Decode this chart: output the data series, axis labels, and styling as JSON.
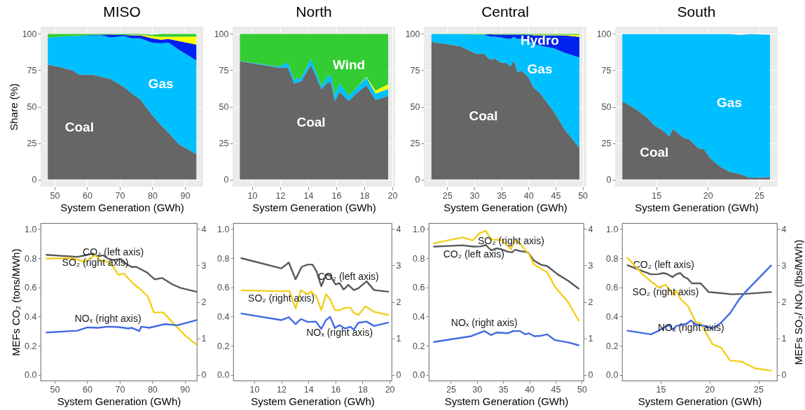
{
  "chart_data": [
    {
      "type": "area",
      "title": "MISO",
      "xlabel": "System Generation (GWh)",
      "ylabel": "Share (%)",
      "stacked": true,
      "grid": true,
      "xlim": [
        45.7,
        95.6
      ],
      "xticks": [
        50,
        60,
        70,
        80,
        90
      ],
      "ylim": [
        -5,
        105
      ],
      "yticks": [
        0,
        25,
        50,
        75,
        100
      ],
      "x": [
        47.9,
        52,
        55.4,
        57.6,
        61.7,
        64.5,
        67.2,
        71.2,
        73.6,
        76.3,
        79.9,
        82.6,
        85,
        88.2,
        93.5
      ],
      "series": [
        {
          "name": "Coal",
          "color": "#666666",
          "values": [
            79,
            77,
            75,
            72,
            72,
            70.4,
            69,
            63.7,
            59.3,
            55,
            44.4,
            37.4,
            32,
            24.2,
            17.5
          ]
        },
        {
          "name": "Gas",
          "color": "#00bfff",
          "values": [
            18.4,
            21,
            23.5,
            26.6,
            27,
            28.6,
            28.5,
            34.8,
            37.7,
            42,
            49.6,
            56.1,
            62,
            64.8,
            64.3
          ]
        },
        {
          "color": "#0022ee",
          "values": [
            0,
            0,
            0,
            0,
            0.3,
            0.5,
            2,
            0.7,
            2,
            2,
            3,
            2.5,
            2.5,
            6,
            10.8
          ]
        },
        {
          "color": "#ffff00",
          "values": [
            0,
            0,
            0,
            0,
            0,
            0,
            0,
            0,
            0.3,
            0.5,
            1.5,
            2,
            1.5,
            3,
            5.6
          ]
        },
        {
          "color": "#33cc33",
          "values": [
            2.6,
            2,
            1.5,
            1.4,
            0.7,
            0.5,
            0.5,
            0.8,
            0.7,
            0.5,
            0.9,
            2,
            2,
            2,
            1.8
          ]
        }
      ]
    },
    {
      "type": "area",
      "title": "North",
      "xlabel": "System Generation (GWh)",
      "stacked": true,
      "grid": true,
      "xlim": [
        8.6,
        20.2
      ],
      "xticks": [
        10,
        12,
        14,
        16,
        18,
        20
      ],
      "ylim": [
        -5,
        105
      ],
      "yticks": [
        0,
        25,
        50,
        75,
        100
      ],
      "x": [
        9.12,
        11.9,
        12.55,
        13.0,
        13.5,
        14.2,
        14.95,
        15.3,
        15.6,
        15.9,
        16.25,
        16.9,
        17.35,
        18.15,
        18.8,
        19.7
      ],
      "series": [
        {
          "name": "Coal",
          "color": "#666666",
          "values": [
            81.2,
            76.8,
            76.8,
            65.8,
            67.5,
            78.6,
            62,
            65.8,
            67.2,
            54,
            60.2,
            54,
            58.4,
            64.6,
            54.6,
            57.5
          ]
        },
        {
          "color": "#00bfff",
          "values": [
            0.3,
            0.7,
            3.5,
            2.7,
            2.5,
            4.4,
            2,
            4.2,
            4.8,
            4,
            5.8,
            3.5,
            3.6,
            5.4,
            4.4,
            4.8
          ]
        },
        {
          "color": "#ffff00",
          "values": [
            0,
            0,
            0,
            0,
            0,
            0,
            0,
            0,
            0,
            0,
            0,
            0,
            0,
            0.5,
            2,
            3.1
          ]
        },
        {
          "name": "Wind",
          "color": "#33cc33",
          "values": [
            18.5,
            22.5,
            19.7,
            31.5,
            30,
            17,
            36,
            30,
            28,
            42,
            34,
            42.5,
            38,
            29.5,
            39,
            34.6
          ]
        }
      ]
    },
    {
      "type": "area",
      "title": "Central",
      "xlabel": "System Generation (GWh)",
      "stacked": true,
      "grid": true,
      "xlim": [
        20.7,
        50.7
      ],
      "xticks": [
        25,
        30,
        35,
        40,
        45,
        50
      ],
      "ylim": [
        -5,
        105
      ],
      "yticks": [
        0,
        25,
        50,
        75,
        100
      ],
      "x": [
        22.1,
        27.4,
        30.5,
        31.7,
        32.9,
        33.8,
        35,
        35.7,
        36.7,
        37.3,
        38,
        38.8,
        40,
        41,
        42.1,
        44.8,
        46.7,
        49.4
      ],
      "series": [
        {
          "name": "Coal",
          "color": "#666666",
          "values": [
            94.6,
            91.6,
            86.2,
            86.6,
            82.3,
            83,
            80,
            80.3,
            77.8,
            81.8,
            73.7,
            74.6,
            70,
            63,
            59.5,
            46,
            34.3,
            21.8
          ]
        },
        {
          "name": "Gas",
          "color": "#00bfff",
          "values": [
            5.2,
            8.2,
            13.3,
            12.9,
            15.9,
            15,
            17.5,
            16.7,
            18.7,
            16.2,
            22.8,
            22.4,
            25,
            30,
            32.5,
            44,
            52.7,
            62.1
          ]
        },
        {
          "name": "Hydro",
          "color": "#0022ee",
          "values": [
            0,
            0,
            0,
            0,
            1.5,
            1.5,
            2,
            2.5,
            3,
            1.5,
            3,
            2.5,
            4.5,
            6,
            7,
            9,
            12,
            14
          ]
        },
        {
          "color": "#ffff00",
          "values": [
            0,
            0,
            0,
            0,
            0,
            0,
            0,
            0,
            0,
            0,
            0,
            0,
            0,
            0.5,
            0.5,
            0.5,
            0.5,
            1.5
          ]
        },
        {
          "color": "#33cc33",
          "values": [
            0.2,
            0.2,
            0.5,
            0.5,
            0.3,
            0.5,
            0.5,
            0.5,
            0.5,
            0.5,
            0.5,
            0.5,
            0.5,
            0.5,
            0.5,
            0.5,
            0.5,
            0.5
          ]
        }
      ]
    },
    {
      "type": "area",
      "title": "South",
      "xlabel": "System Generation (GWh)",
      "stacked": true,
      "grid": true,
      "xlim": [
        11.0,
        26.8
      ],
      "xticks": [
        15,
        20,
        25
      ],
      "ylim": [
        -5,
        105
      ],
      "yticks": [
        0,
        25,
        50,
        75,
        100
      ],
      "x": [
        11.7,
        13.1,
        14.1,
        14.8,
        15.8,
        16.26,
        16.6,
        17.2,
        17.7,
        18.2,
        19.1,
        19.6,
        20.3,
        21.2,
        22.1,
        23.1,
        24.1,
        26.05
      ],
      "series": [
        {
          "name": "Coal",
          "color": "#666666",
          "values": [
            53.7,
            48,
            42.6,
            37.3,
            32.9,
            29.4,
            34.7,
            31.2,
            28.5,
            27.7,
            21.4,
            21.1,
            14.2,
            8.9,
            5.3,
            3.9,
            1.2,
            1.6
          ]
        },
        {
          "name": "Gas",
          "color": "#00bfff",
          "values": [
            46.1,
            51.8,
            57.2,
            62.5,
            66.9,
            70.4,
            65.1,
            68.6,
            71.3,
            72.1,
            78.4,
            78.7,
            85.6,
            90.9,
            94.5,
            95.3,
            98.6,
            97.8
          ]
        }
      ]
    },
    {
      "type": "line",
      "xlabel": "System Generation (GWh)",
      "ylabel": "MEFs CO₂ (tons/MWh)",
      "xlim": [
        45.7,
        93.7
      ],
      "xticks": [
        50,
        60,
        70,
        80,
        90
      ],
      "ylim": [
        -0.04,
        1.04
      ],
      "yticks": [
        {
          "value": 0,
          "label": "0.0"
        },
        {
          "value": 0.2,
          "label": "0.2"
        },
        {
          "value": 0.4,
          "label": "0.4"
        },
        {
          "value": 0.6,
          "label": "0.6"
        },
        {
          "value": 0.8,
          "label": "0.8"
        },
        {
          "value": 1,
          "label": "1.0"
        }
      ],
      "y2lim": [
        -0.16,
        4.16
      ],
      "y2ticks": [
        0,
        1,
        2,
        3,
        4
      ],
      "series": [
        {
          "name": "CO₂ (left axis)",
          "color": "#595959",
          "x": [
            47.5,
            57,
            59.3,
            61.7,
            63.3,
            64.9,
            66.4,
            68,
            70.4,
            72,
            73.6,
            75.1,
            78.3,
            80.7,
            83,
            86.2,
            88.6,
            93.5
          ],
          "values": [
            0.823,
            0.809,
            0.819,
            0.832,
            0.813,
            0.82,
            0.797,
            0.788,
            0.793,
            0.761,
            0.74,
            0.74,
            0.703,
            0.655,
            0.664,
            0.62,
            0.597,
            0.57
          ]
        },
        {
          "name": "SO₂ (right axis)",
          "color": "#f2cf1d",
          "axis": "y2",
          "x": [
            47.5,
            55.4,
            59.3,
            62.5,
            64.5,
            66.4,
            68,
            69.6,
            71.2,
            74.3,
            76.3,
            78.7,
            80.5,
            83.4,
            87,
            90.2,
            93.5
          ],
          "values": [
            3.19,
            3.2,
            3.1,
            3.28,
            3.12,
            3.1,
            2.96,
            2.74,
            2.78,
            2.49,
            2.35,
            2.14,
            1.71,
            1.71,
            1.36,
            1.07,
            0.83
          ]
        },
        {
          "name": "NOₓ (right axis)",
          "color": "#4169e1",
          "axis": "y2",
          "x": [
            47.5,
            57,
            60.1,
            63.3,
            66.4,
            69.6,
            72.8,
            73.6,
            76,
            76.6,
            79.1,
            83.8,
            87.8,
            93.5
          ],
          "values": [
            1.16,
            1.21,
            1.3,
            1.29,
            1.32,
            1.31,
            1.27,
            1.29,
            1.2,
            1.32,
            1.29,
            1.39,
            1.36,
            1.5
          ]
        }
      ]
    },
    {
      "type": "line",
      "xlabel": "System Generation (GWh)",
      "xlim": [
        8.45,
        20.15
      ],
      "xticks": [
        10,
        12,
        14,
        16,
        18,
        20
      ],
      "ylim": [
        -0.04,
        1.04
      ],
      "yticks": [
        {
          "value": 0,
          "label": "0.0"
        },
        {
          "value": 0.2,
          "label": "0.2"
        },
        {
          "value": 0.4,
          "label": "0.4"
        },
        {
          "value": 0.6,
          "label": "0.6"
        },
        {
          "value": 0.8,
          "label": "0.8"
        },
        {
          "value": 1,
          "label": "1.0"
        }
      ],
      "y2lim": [
        -0.16,
        4.16
      ],
      "y2ticks": [
        0,
        1,
        2,
        3,
        4
      ],
      "series": [
        {
          "name": "CO₂ (left axis)",
          "color": "#595959",
          "x": [
            9.05,
            12.0,
            12.55,
            13.05,
            13.5,
            13.95,
            14.3,
            14.6,
            14.95,
            15.3,
            15.6,
            16.0,
            16.3,
            16.6,
            16.95,
            17.35,
            17.7,
            18.3,
            18.85,
            19.9
          ],
          "values": [
            0.8,
            0.73,
            0.77,
            0.655,
            0.74,
            0.756,
            0.756,
            0.71,
            0.608,
            0.687,
            0.682,
            0.62,
            0.629,
            0.585,
            0.617,
            0.581,
            0.594,
            0.641,
            0.581,
            0.57
          ]
        },
        {
          "name": "SO₂ (right axis)",
          "color": "#f2cf1d",
          "axis": "y2",
          "x": [
            9.05,
            12,
            12.6,
            13.05,
            13.45,
            13.95,
            14.2,
            14.6,
            14.95,
            15.3,
            15.6,
            15.95,
            16.3,
            16.7,
            17.1,
            17.35,
            17.7,
            18.2,
            18.85,
            19.9
          ],
          "values": [
            2.32,
            2.29,
            2.3,
            1.82,
            2.32,
            2.21,
            2.29,
            2.14,
            1.77,
            2.21,
            2.07,
            1.78,
            1.77,
            1.84,
            1.84,
            1.7,
            1.64,
            1.88,
            1.73,
            1.64
          ]
        },
        {
          "name": "NOₓ (right axis)",
          "color": "#4169e1",
          "axis": "y2",
          "x": [
            9.05,
            12,
            12.55,
            13.05,
            13.45,
            13.95,
            14.55,
            14.95,
            15.3,
            15.6,
            15.95,
            16.3,
            16.7,
            17.1,
            17.35,
            17.7,
            18.3,
            18.85,
            19.9
          ],
          "values": [
            1.68,
            1.5,
            1.58,
            1.39,
            1.53,
            1.45,
            1.46,
            1.26,
            1.5,
            1.59,
            1.29,
            1.36,
            1.27,
            1.32,
            1.24,
            1.43,
            1.46,
            1.34,
            1.43
          ]
        }
      ]
    },
    {
      "type": "line",
      "xlabel": "System Generation (GWh)",
      "xlim": [
        20.8,
        50.35
      ],
      "xticks": [
        25,
        30,
        35,
        40,
        45,
        50
      ],
      "ylim": [
        -0.04,
        1.04
      ],
      "yticks": [
        {
          "value": 0,
          "label": "0.0"
        },
        {
          "value": 0.2,
          "label": "0.2"
        },
        {
          "value": 0.4,
          "label": "0.4"
        },
        {
          "value": 0.6,
          "label": "0.6"
        },
        {
          "value": 0.8,
          "label": "0.8"
        },
        {
          "value": 1,
          "label": "1.0"
        }
      ],
      "y2lim": [
        -0.16,
        4.16
      ],
      "y2ticks": [
        0,
        1,
        2,
        3,
        4
      ],
      "series": [
        {
          "name": "CO₂ (left axis)",
          "color": "#595959",
          "x": [
            21.8,
            27.2,
            29.4,
            30.7,
            31.7,
            32.7,
            33.7,
            34.7,
            35.9,
            36.7,
            37.3,
            38.2,
            39.7,
            40.9,
            42.2,
            43.4,
            45.4,
            47.4,
            49.4
          ],
          "values": [
            0.879,
            0.888,
            0.879,
            0.881,
            0.89,
            0.854,
            0.867,
            0.861,
            0.844,
            0.84,
            0.858,
            0.849,
            0.84,
            0.783,
            0.755,
            0.746,
            0.689,
            0.645,
            0.591
          ]
        },
        {
          "name": "SO₂ (right axis)",
          "color": "#f2cf1d",
          "axis": "y2",
          "x": [
            21.8,
            27.2,
            29.2,
            30.4,
            31.7,
            32.7,
            34.7,
            36.5,
            37.2,
            37.9,
            39.9,
            40.9,
            43.4,
            44.9,
            47.4,
            49.4
          ],
          "values": [
            3.61,
            3.77,
            3.69,
            3.88,
            3.95,
            3.71,
            3.7,
            3.45,
            3.69,
            3.64,
            3.31,
            3.02,
            2.81,
            2.41,
            1.99,
            1.49
          ]
        },
        {
          "name": "NOₓ (right axis)",
          "color": "#4169e1",
          "axis": "y2",
          "x": [
            21.8,
            28.9,
            31.4,
            32.7,
            33.7,
            35.9,
            36.9,
            38.2,
            39.2,
            39.9,
            40.9,
            42.2,
            43.4,
            44.9,
            47.4,
            49.4
          ],
          "values": [
            0.9,
            1.06,
            1.2,
            1.09,
            1.16,
            1.14,
            1.2,
            1.2,
            1.11,
            1.14,
            1.06,
            1.07,
            1.11,
            0.95,
            0.89,
            0.81
          ]
        }
      ]
    },
    {
      "type": "line",
      "xlabel": "System Generation (GWh)",
      "y2label": "MEFs SO₂/ NOₓ (lbs/MWh)",
      "xlim": [
        11.05,
        26.9
      ],
      "xticks": [
        15,
        20,
        25
      ],
      "ylim": [
        -0.04,
        1.04
      ],
      "yticks": [
        {
          "value": 0,
          "label": "0.0"
        },
        {
          "value": 0.2,
          "label": "0.2"
        },
        {
          "value": 0.4,
          "label": "0.4"
        },
        {
          "value": 0.6,
          "label": "0.6"
        },
        {
          "value": 0.8,
          "label": "0.8"
        },
        {
          "value": 1,
          "label": "1.0"
        }
      ],
      "y2lim": [
        -0.16,
        4.16
      ],
      "y2ticks": [
        0,
        1,
        2,
        3,
        4
      ],
      "series": [
        {
          "name": "CO₂ (left axis)",
          "color": "#595959",
          "x": [
            11.6,
            14,
            14.7,
            15.3,
            15.7,
            16.2,
            16.6,
            17,
            17.4,
            17.7,
            18.2,
            19.1,
            19.9,
            21,
            22.3,
            23.8,
            26.3
          ],
          "values": [
            0.751,
            0.689,
            0.69,
            0.698,
            0.69,
            0.67,
            0.69,
            0.698,
            0.67,
            0.663,
            0.627,
            0.627,
            0.568,
            0.561,
            0.552,
            0.556,
            0.568
          ]
        },
        {
          "name": "SO₂ (right axis)",
          "color": "#f2cf1d",
          "axis": "y2",
          "x": [
            11.6,
            13.1,
            14,
            14.8,
            15.5,
            16.3,
            16.6,
            17,
            17.8,
            18.6,
            19.1,
            20.3,
            21.2,
            22.1,
            23.3,
            24.6,
            26.3
          ],
          "values": [
            3.21,
            2.77,
            2.56,
            2.4,
            2.47,
            2.2,
            2.31,
            2.09,
            1.88,
            1.44,
            1.41,
            0.84,
            0.74,
            0.39,
            0.36,
            0.18,
            0.11
          ]
        },
        {
          "name": "NOₓ (right axis)",
          "color": "#4169e1",
          "axis": "y2",
          "x": [
            11.6,
            14,
            14.8,
            15.5,
            15.9,
            16.2,
            16.6,
            17.2,
            17.6,
            18.1,
            18.6,
            19.3,
            20.3,
            21.1,
            22.1,
            23,
            23.8,
            26.3
          ],
          "values": [
            1.21,
            1.11,
            1.21,
            1.33,
            1.36,
            1.24,
            1.34,
            1.38,
            1.39,
            1.49,
            1.38,
            1.35,
            1.27,
            1.41,
            1.69,
            2.06,
            2.31,
            3.0
          ]
        }
      ]
    }
  ]
}
